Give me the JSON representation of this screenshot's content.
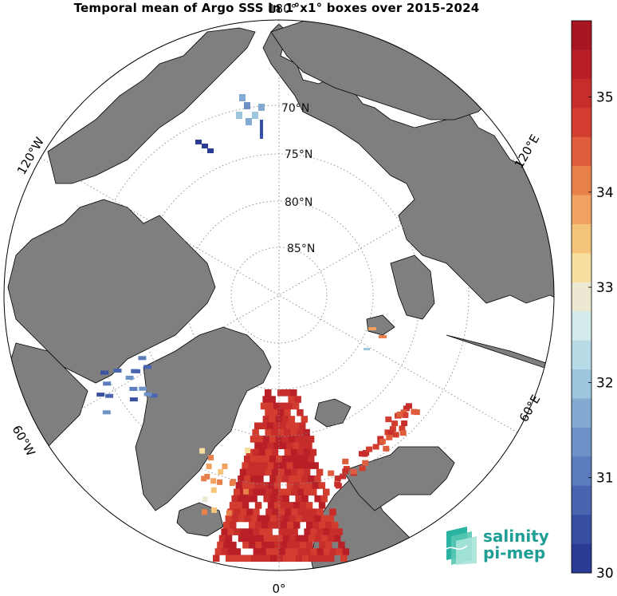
{
  "title": "Temporal mean of Argo SSS in 1°x1° boxes over 2015-2024",
  "map": {
    "projection": "north polar stereographic",
    "land_color": "#7f7f7f",
    "coast_color": "#000000",
    "grid": "dotted",
    "lon_labels": {
      "top": "180°",
      "bottom": "0°",
      "left_upper": "120°W",
      "left_lower": "60°W",
      "right_upper": "120°E",
      "right_lower": "60°E"
    },
    "lat_labels": [
      "70°N",
      "75°N",
      "80°N",
      "85°N"
    ]
  },
  "colorbar": {
    "min": 30,
    "max": 35.8,
    "ticks": [
      "30",
      "31",
      "32",
      "33",
      "34",
      "35"
    ],
    "colors": [
      "#2a3a95",
      "#3850a3",
      "#4a65b0",
      "#5b7cbd",
      "#6c92c8",
      "#82aad3",
      "#9bc6de",
      "#b7dbe6",
      "#d3eaeb",
      "#ece8d2",
      "#f6de9e",
      "#f4c47a",
      "#f0a260",
      "#e8804c",
      "#df5c3c",
      "#d23d30",
      "#c62d2b",
      "#b81f27",
      "#a81523"
    ]
  },
  "logo": {
    "line1": "salinity",
    "line2": "pi-mep"
  }
}
